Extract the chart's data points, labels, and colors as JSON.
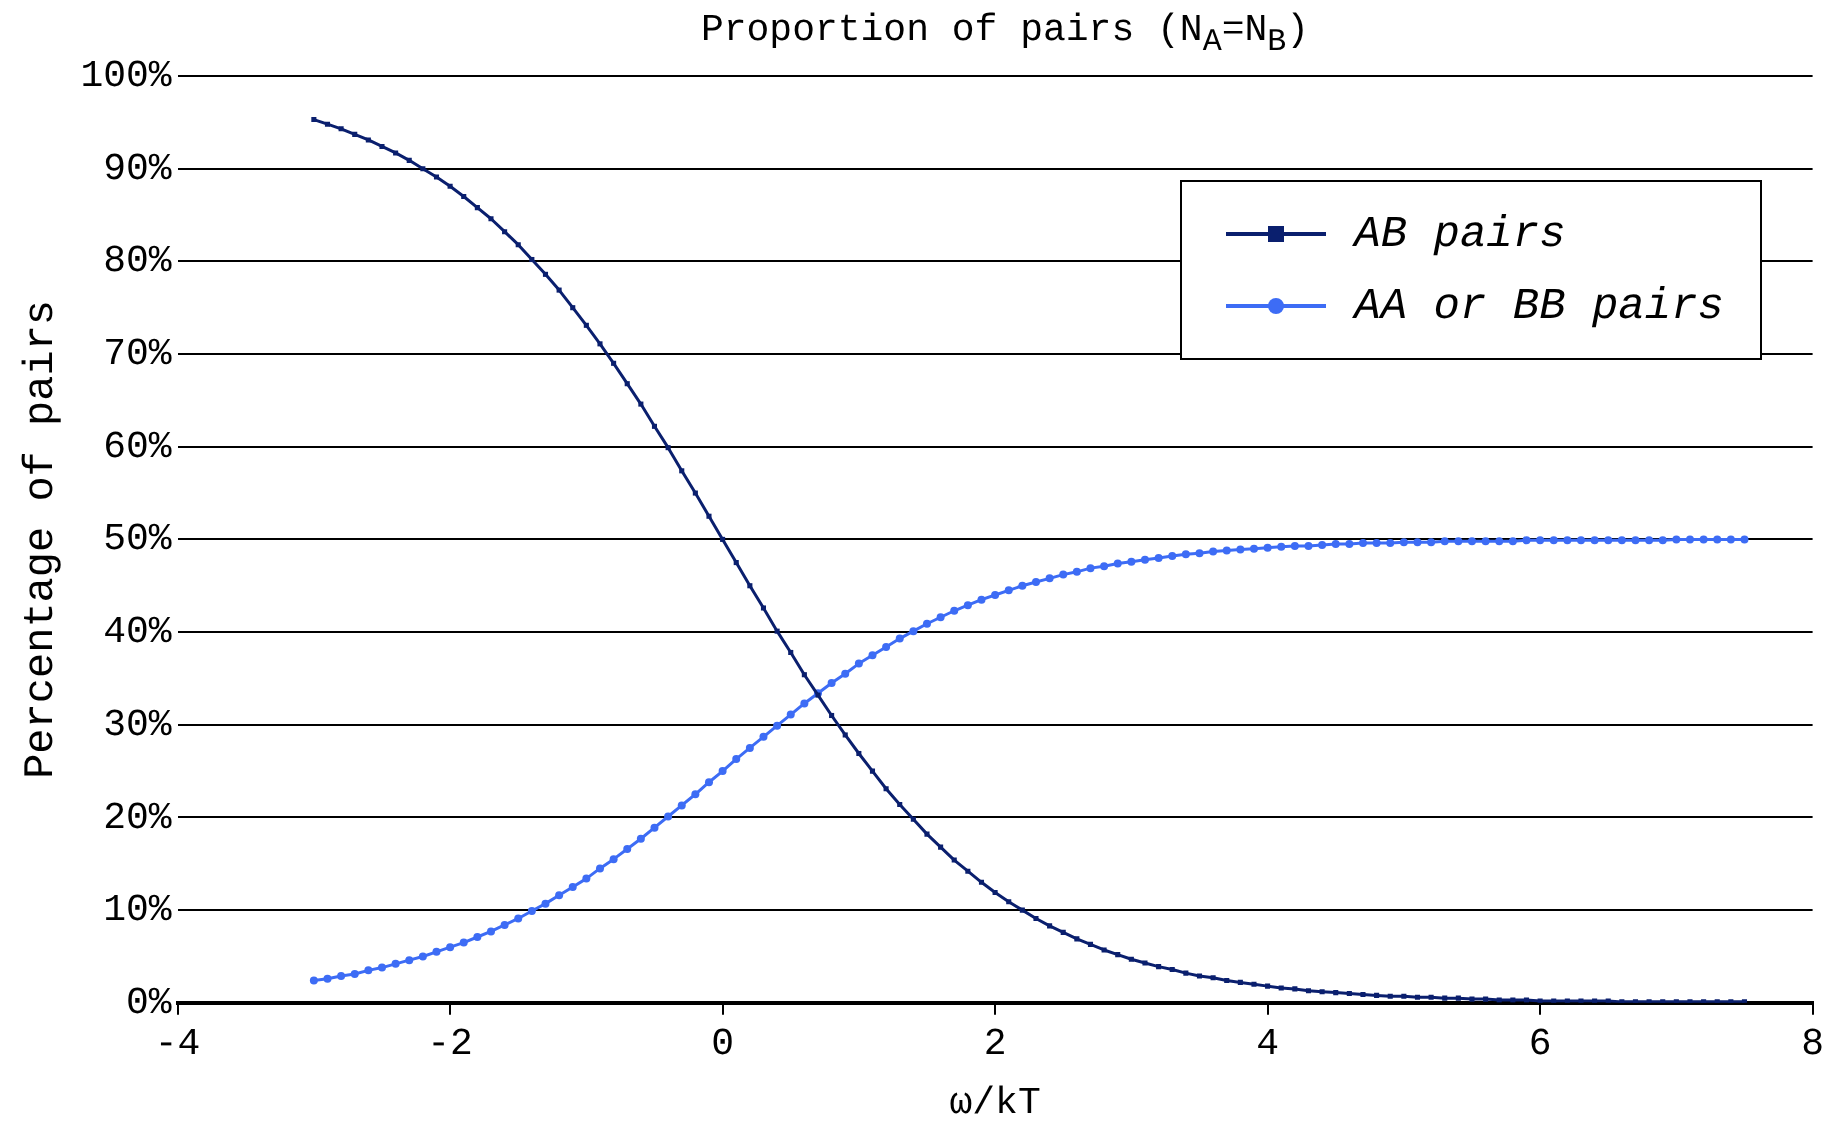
{
  "chart_data": {
    "type": "line",
    "title": "Proportion of pairs (N$_{A}$=N$_{B}$)",
    "xlabel": "ω/kT",
    "ylabel": "Percentage of pairs",
    "x": [
      -3.0,
      -2.9,
      -2.8,
      -2.7,
      -2.6,
      -2.5,
      -2.4,
      -2.3,
      -2.2,
      -2.1,
      -2.0,
      -1.9,
      -1.8,
      -1.7,
      -1.6,
      -1.5,
      -1.4,
      -1.3,
      -1.2,
      -1.1,
      -1.0,
      -0.9,
      -0.8,
      -0.7,
      -0.6,
      -0.5,
      -0.4,
      -0.3,
      -0.2,
      -0.1,
      0.0,
      0.1,
      0.2,
      0.3,
      0.4,
      0.5,
      0.6,
      0.7,
      0.8,
      0.9,
      1.0,
      1.1,
      1.2,
      1.3,
      1.4,
      1.5,
      1.6,
      1.7,
      1.8,
      1.9,
      2.0,
      2.1,
      2.2,
      2.3,
      2.4,
      2.5,
      2.6,
      2.7,
      2.8,
      2.9,
      3.0,
      3.1,
      3.2,
      3.3,
      3.4,
      3.5,
      3.6,
      3.7,
      3.8,
      3.9,
      4.0,
      4.1,
      4.2,
      4.3,
      4.4,
      4.5,
      4.6,
      4.7,
      4.8,
      4.9,
      5.0,
      5.1,
      5.2,
      5.3,
      5.4,
      5.5,
      5.6,
      5.7,
      5.8,
      5.9,
      6.0,
      6.1,
      6.2,
      6.3,
      6.4,
      6.5,
      6.6,
      6.7,
      6.8,
      6.9,
      7.0,
      7.1,
      7.2,
      7.3,
      7.4,
      7.5
    ],
    "series": [
      {
        "name": "AB pairs",
        "color": "#0a1f6e",
        "marker": "square",
        "values": [
          95.3,
          94.8,
          94.3,
          93.7,
          93.1,
          92.4,
          91.7,
          90.9,
          90.0,
          89.1,
          88.1,
          87.0,
          85.8,
          84.6,
          83.2,
          81.8,
          80.2,
          78.6,
          76.9,
          75.0,
          73.1,
          71.1,
          69.0,
          66.8,
          64.6,
          62.2,
          59.9,
          57.4,
          55.0,
          52.5,
          50.0,
          47.5,
          45.0,
          42.6,
          40.1,
          37.8,
          35.4,
          33.2,
          31.0,
          28.9,
          26.9,
          25.0,
          23.1,
          21.4,
          19.8,
          18.2,
          16.8,
          15.4,
          14.2,
          13.0,
          11.9,
          10.9,
          10.0,
          9.1,
          8.3,
          7.6,
          6.9,
          6.3,
          5.7,
          5.2,
          4.7,
          4.3,
          3.9,
          3.6,
          3.2,
          2.9,
          2.7,
          2.4,
          2.2,
          2.0,
          1.8,
          1.6,
          1.5,
          1.3,
          1.2,
          1.1,
          1.0,
          0.9,
          0.8,
          0.7,
          0.7,
          0.6,
          0.6,
          0.5,
          0.5,
          0.4,
          0.4,
          0.3,
          0.3,
          0.3,
          0.2,
          0.2,
          0.2,
          0.2,
          0.2,
          0.2,
          0.1,
          0.1,
          0.1,
          0.1,
          0.1,
          0.1,
          0.1,
          0.1,
          0.1,
          0.1
        ]
      },
      {
        "name": "AA or BB pairs",
        "color": "#3d6cf5",
        "marker": "circle",
        "values": [
          2.4,
          2.6,
          2.9,
          3.1,
          3.5,
          3.8,
          4.2,
          4.6,
          5.0,
          5.5,
          6.0,
          6.5,
          7.1,
          7.7,
          8.4,
          9.1,
          9.9,
          10.7,
          11.6,
          12.5,
          13.4,
          14.5,
          15.5,
          16.6,
          17.7,
          18.9,
          20.1,
          21.3,
          22.5,
          23.8,
          25.0,
          26.3,
          27.5,
          28.7,
          29.9,
          31.1,
          32.3,
          33.4,
          34.5,
          35.5,
          36.6,
          37.5,
          38.4,
          39.3,
          40.1,
          40.9,
          41.6,
          42.3,
          42.9,
          43.5,
          44.0,
          44.5,
          45.0,
          45.4,
          45.8,
          46.2,
          46.5,
          46.9,
          47.1,
          47.4,
          47.6,
          47.8,
          48.0,
          48.2,
          48.4,
          48.5,
          48.7,
          48.8,
          48.9,
          49.0,
          49.1,
          49.2,
          49.3,
          49.3,
          49.4,
          49.5,
          49.5,
          49.6,
          49.6,
          49.6,
          49.7,
          49.7,
          49.7,
          49.8,
          49.8,
          49.8,
          49.8,
          49.8,
          49.8,
          49.9,
          49.9,
          49.9,
          49.9,
          49.9,
          49.9,
          49.9,
          49.9,
          49.9,
          49.9,
          49.9,
          50.0,
          50.0,
          50.0,
          50.0,
          50.0,
          50.0
        ]
      }
    ],
    "xlim": [
      -4,
      8
    ],
    "xticks": [
      -4,
      -2,
      0,
      2,
      4,
      6,
      8
    ],
    "ylim": [
      0,
      100
    ],
    "yticks": [
      {
        "value": 0,
        "label": "0%"
      },
      {
        "value": 10,
        "label": "10%"
      },
      {
        "value": 20,
        "label": "20%"
      },
      {
        "value": 30,
        "label": "30%"
      },
      {
        "value": 40,
        "label": "40%"
      },
      {
        "value": 50,
        "label": "50%"
      },
      {
        "value": 60,
        "label": "60%"
      },
      {
        "value": 70,
        "label": "70%"
      },
      {
        "value": 80,
        "label": "80%"
      },
      {
        "value": 90,
        "label": "90%"
      },
      {
        "value": 100,
        "label": "100%"
      }
    ],
    "grid": "y",
    "legend": "top right"
  }
}
